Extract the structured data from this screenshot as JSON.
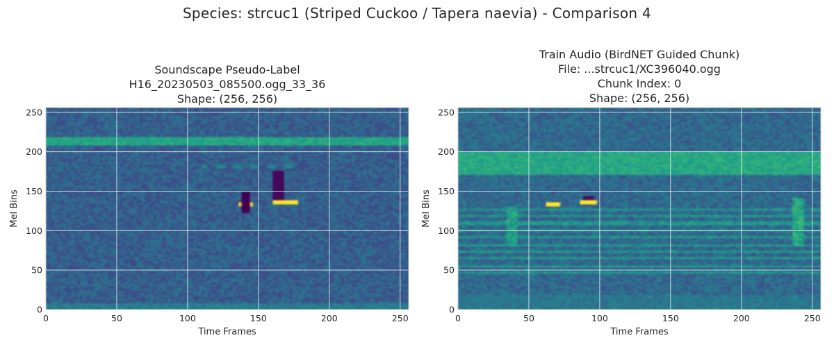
{
  "figure": {
    "suptitle": "Species: strcuc1 (Striped Cuckoo / Tapera naevia) - Comparison 4"
  },
  "chart_data": [
    {
      "type": "heatmap",
      "title_lines": [
        "Soundscape Pseudo-Label",
        "H16_20230503_085500.ogg_33_36",
        "Shape: (256, 256)"
      ],
      "xlabel": "Time Frames",
      "ylabel": "Mel Bins",
      "xlim": [
        0,
        256
      ],
      "ylim": [
        0,
        256
      ],
      "xticks": [
        "0",
        "50",
        "100",
        "150",
        "200",
        "250"
      ],
      "yticks": [
        "0",
        "50",
        "100",
        "150",
        "200",
        "250"
      ],
      "grid": true,
      "colormap": "viridis",
      "background_intensity": 0.3,
      "features": [
        {
          "kind": "band",
          "y_range": [
            207,
            219
          ],
          "intensity": 0.58
        },
        {
          "kind": "band",
          "y_range": [
            0,
            8
          ],
          "intensity": 0.42
        },
        {
          "kind": "blob",
          "x_range": [
            136,
            146
          ],
          "y_range": [
            132,
            137
          ],
          "intensity": 1.0
        },
        {
          "kind": "blob",
          "x_range": [
            160,
            178
          ],
          "y_range": [
            134,
            139
          ],
          "intensity": 1.0
        },
        {
          "kind": "blob",
          "x_range": [
            139,
            144
          ],
          "y_range": [
            123,
            148
          ],
          "intensity": 0.0
        },
        {
          "kind": "blob",
          "x_range": [
            161,
            167
          ],
          "y_range": [
            140,
            175
          ],
          "intensity": 0.02
        },
        {
          "kind": "dashes",
          "x_range": [
            110,
            175
          ],
          "y_range": [
            180,
            185
          ],
          "intensity": 0.45
        }
      ]
    },
    {
      "type": "heatmap",
      "title_lines": [
        "Train Audio (BirdNET Guided Chunk)",
        "File: ...strcuc1/XC396040.ogg",
        "Chunk Index: 0",
        "Shape: (256, 256)"
      ],
      "xlabel": "Time Frames",
      "ylabel": "Mel Bins",
      "xlim": [
        0,
        256
      ],
      "ylim": [
        0,
        256
      ],
      "xticks": [
        "0",
        "50",
        "100",
        "150",
        "200",
        "250"
      ],
      "yticks": [
        "0",
        "50",
        "100",
        "150",
        "200",
        "250"
      ],
      "grid": true,
      "colormap": "viridis",
      "background_intensity": 0.34,
      "features": [
        {
          "kind": "band",
          "y_range": [
            172,
            200
          ],
          "intensity": 0.6
        },
        {
          "kind": "band",
          "y_range": [
            0,
            18
          ],
          "intensity": 0.4
        },
        {
          "kind": "stripes",
          "y_range": [
            40,
            135
          ],
          "intensity": 0.52
        },
        {
          "kind": "blob",
          "x_range": [
            63,
            71
          ],
          "y_range": [
            130,
            135
          ],
          "intensity": 1.0
        },
        {
          "kind": "blob",
          "x_range": [
            87,
            98
          ],
          "y_range": [
            133,
            138
          ],
          "intensity": 1.0
        },
        {
          "kind": "blob",
          "x_range": [
            88,
            96
          ],
          "y_range": [
            139,
            144
          ],
          "intensity": 0.05
        },
        {
          "kind": "vline",
          "x_range": [
            237,
            243
          ],
          "y_range": [
            80,
            140
          ],
          "intensity": 0.7
        },
        {
          "kind": "vline",
          "x_range": [
            35,
            42
          ],
          "y_range": [
            80,
            130
          ],
          "intensity": 0.65
        }
      ]
    }
  ]
}
